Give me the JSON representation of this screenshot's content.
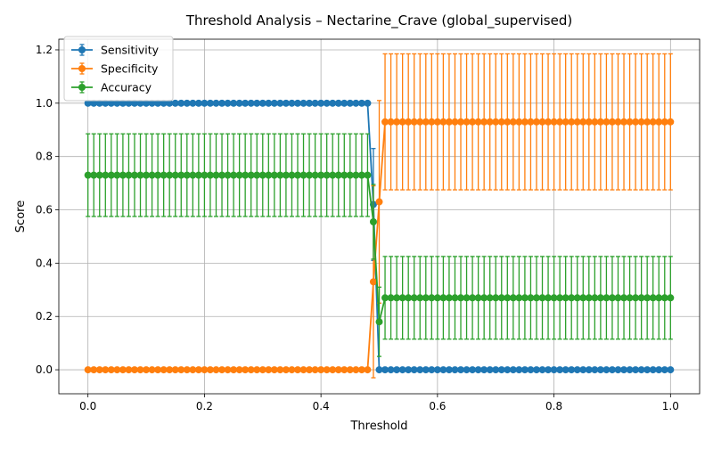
{
  "chart_data": {
    "type": "line",
    "title": "Threshold Analysis – Nectarine_Crave (global_supervised)",
    "xlabel": "Threshold",
    "ylabel": "Score",
    "xlim": [
      -0.05,
      1.05
    ],
    "ylim": [
      -0.09,
      1.24
    ],
    "xticks": [
      "0.0",
      "0.2",
      "0.4",
      "0.6",
      "0.8",
      "1.0"
    ],
    "yticks": [
      "0.0",
      "0.2",
      "0.4",
      "0.6",
      "0.8",
      "1.0",
      "1.2"
    ],
    "grid": true,
    "legend_position": "top-left",
    "x": [
      0.0,
      0.01,
      0.02,
      0.03,
      0.04,
      0.05,
      0.06,
      0.07,
      0.08,
      0.09,
      0.1,
      0.11,
      0.12,
      0.13,
      0.14,
      0.15,
      0.16,
      0.17,
      0.18,
      0.19,
      0.2,
      0.21,
      0.22,
      0.23,
      0.24,
      0.25,
      0.26,
      0.27,
      0.28,
      0.29,
      0.3,
      0.31,
      0.32,
      0.33,
      0.34,
      0.35,
      0.36,
      0.37,
      0.38,
      0.39,
      0.4,
      0.41,
      0.42,
      0.43,
      0.44,
      0.45,
      0.46,
      0.47,
      0.48,
      0.49,
      0.5,
      0.51,
      0.52,
      0.53,
      0.54,
      0.55,
      0.56,
      0.57,
      0.58,
      0.59,
      0.6,
      0.61,
      0.62,
      0.63,
      0.64,
      0.65,
      0.66,
      0.67,
      0.68,
      0.69,
      0.7,
      0.71,
      0.72,
      0.73,
      0.74,
      0.75,
      0.76,
      0.77,
      0.78,
      0.79,
      0.8,
      0.81,
      0.82,
      0.83,
      0.84,
      0.85,
      0.86,
      0.87,
      0.88,
      0.89,
      0.9,
      0.91,
      0.92,
      0.93,
      0.94,
      0.95,
      0.96,
      0.97,
      0.98,
      0.99,
      1.0
    ],
    "series": [
      {
        "name": "Sensitivity",
        "color": "#1f77b4",
        "segments": [
          {
            "from": 0.0,
            "to": 0.48,
            "value": 1.0,
            "err": 0.0
          },
          {
            "from": 0.49,
            "to": 0.49,
            "value": 0.62,
            "err": 0.21
          },
          {
            "from": 0.5,
            "to": 1.0,
            "value": 0.0,
            "err": 0.0
          }
        ]
      },
      {
        "name": "Specificity",
        "color": "#ff7f0e",
        "segments": [
          {
            "from": 0.0,
            "to": 0.48,
            "value": 0.0,
            "err": 0.0
          },
          {
            "from": 0.49,
            "to": 0.49,
            "value": 0.33,
            "err": 0.36
          },
          {
            "from": 0.5,
            "to": 0.5,
            "value": 0.63,
            "err": 0.38
          },
          {
            "from": 0.51,
            "to": 1.0,
            "value": 0.93,
            "err": 0.255
          }
        ]
      },
      {
        "name": "Accuracy",
        "color": "#2ca02c",
        "segments": [
          {
            "from": 0.0,
            "to": 0.48,
            "value": 0.73,
            "err": 0.155
          },
          {
            "from": 0.49,
            "to": 0.49,
            "value": 0.555,
            "err": 0.14
          },
          {
            "from": 0.5,
            "to": 0.5,
            "value": 0.18,
            "err": 0.13
          },
          {
            "from": 0.51,
            "to": 1.0,
            "value": 0.27,
            "err": 0.155
          }
        ]
      }
    ]
  }
}
